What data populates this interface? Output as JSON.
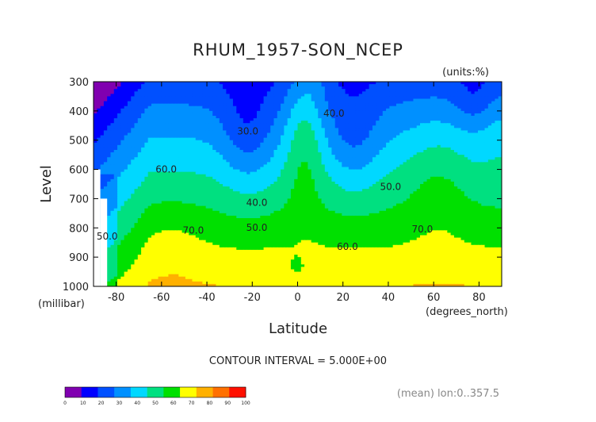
{
  "chart_data": {
    "type": "contour",
    "title": "RHUM_1957-SON_NCEP",
    "units": "(units:%)",
    "xlabel": "Latitude",
    "x_unit": "(degrees_north)",
    "ylabel": "Level",
    "y_unit": "(millibar)",
    "xlim": [
      -90,
      90
    ],
    "ylim": [
      1000,
      300
    ],
    "x_ticks": [
      -80,
      -60,
      -40,
      -20,
      0,
      20,
      40,
      60,
      80
    ],
    "y_ticks": [
      300,
      400,
      500,
      600,
      700,
      800,
      900,
      1000
    ],
    "contour_interval_text": "CONTOUR INTERVAL = 5.000E+00",
    "footnote": "(mean) lon:0..357.5",
    "colorbar": {
      "levels": [
        0,
        10,
        20,
        30,
        40,
        50,
        60,
        70,
        80,
        90,
        100
      ],
      "colors": [
        "#8000b0",
        "#0000ff",
        "#0050ff",
        "#0090ff",
        "#00d8ff",
        "#00e080",
        "#00e000",
        "#ffff00",
        "#ffb000",
        "#ff7000",
        "#ff1000"
      ]
    },
    "contour_labels": [
      {
        "text": "30.0",
        "lat": -22,
        "level": 480
      },
      {
        "text": "40.0",
        "lat": 16,
        "level": 420
      },
      {
        "text": "40.0",
        "lat": -18,
        "level": 725
      },
      {
        "text": "50.0",
        "lat": -18,
        "level": 810
      },
      {
        "text": "50.0",
        "lat": 41,
        "level": 670
      },
      {
        "text": "60.0",
        "lat": -58,
        "level": 610
      },
      {
        "text": "60.0",
        "lat": 22,
        "level": 875
      },
      {
        "text": "70.0",
        "lat": -46,
        "level": 820
      },
      {
        "text": "70.0",
        "lat": 55,
        "level": 815
      },
      {
        "text": "50.0",
        "lat": -84,
        "level": 840
      }
    ]
  }
}
